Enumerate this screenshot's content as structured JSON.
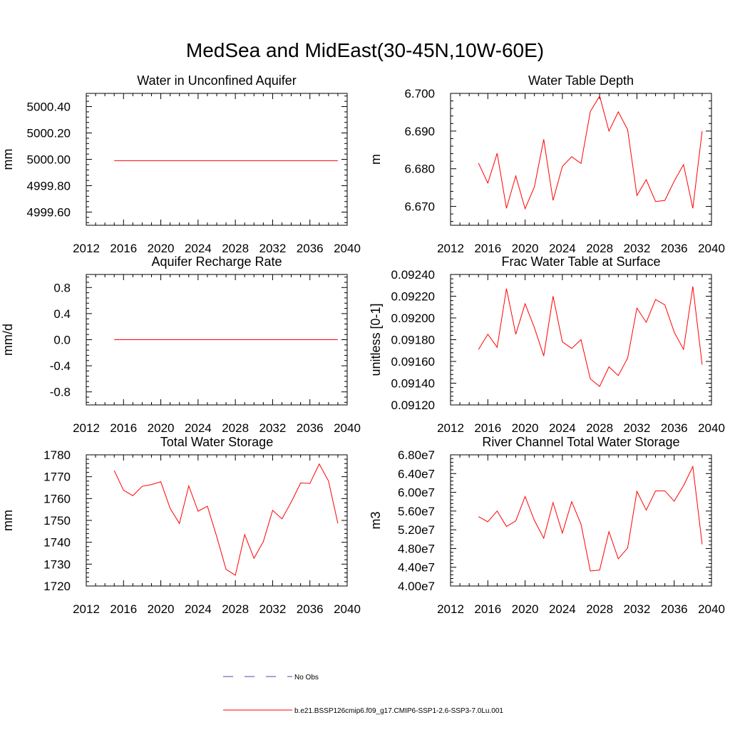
{
  "title": "MedSea and MidEast(30-45N,10W-60E)",
  "colors": {
    "model": "#ff0000",
    "obs": "#4a4aa8",
    "axis": "#000000"
  },
  "legend": {
    "obs_label": "No Obs",
    "model_label": "b.e21.BSSP126cmip6.f09_g17.CMIP6-SSP1-2.6-SSP3-7.0Lu.001"
  },
  "chart_data": [
    {
      "type": "line",
      "title": "Water in Unconfined Aquifer",
      "ylabel": "mm",
      "xlim": [
        2012,
        2040
      ],
      "ylim": [
        4999.5,
        5000.5
      ],
      "xticks": [
        2012,
        2016,
        2020,
        2024,
        2028,
        2032,
        2036,
        2040
      ],
      "xtick_labels": [
        "2012",
        "2016",
        "2020",
        "2024",
        "2028",
        "2032",
        "2036",
        "2040"
      ],
      "yticks": [
        4999.6,
        4999.8,
        5000.0,
        5000.2,
        5000.4
      ],
      "ytick_labels": [
        "4999.60",
        "4999.80",
        "5000.00",
        "5000.20",
        "5000.40"
      ],
      "x": [
        2015,
        2039
      ],
      "y": [
        4999.99,
        4999.99
      ]
    },
    {
      "type": "line",
      "title": "Water Table Depth",
      "ylabel": "m",
      "xlim": [
        2012,
        2040
      ],
      "ylim": [
        6.665,
        6.7
      ],
      "xticks": [
        2012,
        2016,
        2020,
        2024,
        2028,
        2032,
        2036,
        2040
      ],
      "xtick_labels": [
        "2012",
        "2016",
        "2020",
        "2024",
        "2028",
        "2032",
        "2036",
        "2040"
      ],
      "yticks": [
        6.67,
        6.68,
        6.69,
        6.7
      ],
      "ytick_labels": [
        "6.670",
        "6.680",
        "6.690",
        "6.700"
      ],
      "x": [
        2015,
        2016,
        2017,
        2018,
        2019,
        2020,
        2021,
        2022,
        2023,
        2024,
        2025,
        2026,
        2027,
        2028,
        2029,
        2030,
        2031,
        2032,
        2033,
        2034,
        2035,
        2036,
        2037,
        2038,
        2039
      ],
      "y": [
        6.6815,
        6.6762,
        6.6841,
        6.6695,
        6.6781,
        6.6694,
        6.6752,
        6.6878,
        6.6716,
        6.6806,
        6.6832,
        6.6814,
        6.6952,
        6.6993,
        6.69,
        6.6951,
        6.6904,
        6.6729,
        6.6771,
        6.6713,
        6.6716,
        6.6767,
        6.6811,
        6.6695,
        6.69
      ]
    },
    {
      "type": "line",
      "title": "Aquifer Recharge Rate",
      "ylabel": "mm/d",
      "xlim": [
        2012,
        2040
      ],
      "ylim": [
        -1.0,
        1.0
      ],
      "xticks": [
        2012,
        2016,
        2020,
        2024,
        2028,
        2032,
        2036,
        2040
      ],
      "xtick_labels": [
        "2012",
        "2016",
        "2020",
        "2024",
        "2028",
        "2032",
        "2036",
        "2040"
      ],
      "yticks": [
        -0.8,
        -0.4,
        0.0,
        0.4,
        0.8
      ],
      "ytick_labels": [
        "-0.8",
        "-0.4",
        "0.0",
        "0.4",
        "0.8"
      ],
      "x": [
        2015,
        2039
      ],
      "y": [
        0.0,
        0.0
      ]
    },
    {
      "type": "line",
      "title": "Frac Water Table at Surface",
      "ylabel": "unitless [0-1]",
      "xlim": [
        2012,
        2040
      ],
      "ylim": [
        0.0912,
        0.0924
      ],
      "xticks": [
        2012,
        2016,
        2020,
        2024,
        2028,
        2032,
        2036,
        2040
      ],
      "xtick_labels": [
        "2012",
        "2016",
        "2020",
        "2024",
        "2028",
        "2032",
        "2036",
        "2040"
      ],
      "yticks": [
        0.0912,
        0.0914,
        0.0916,
        0.0918,
        0.092,
        0.0922,
        0.0924
      ],
      "ytick_labels": [
        "0.09120",
        "0.09140",
        "0.09160",
        "0.09180",
        "0.09200",
        "0.09220",
        "0.09240"
      ],
      "x": [
        2015,
        2016,
        2017,
        2018,
        2019,
        2020,
        2021,
        2022,
        2023,
        2024,
        2025,
        2026,
        2027,
        2028,
        2029,
        2030,
        2031,
        2032,
        2033,
        2034,
        2035,
        2036,
        2037,
        2038,
        2039
      ],
      "y": [
        0.09171,
        0.09185,
        0.09173,
        0.09227,
        0.09185,
        0.09213,
        0.09191,
        0.09165,
        0.0922,
        0.09178,
        0.09172,
        0.0918,
        0.09144,
        0.09137,
        0.09155,
        0.09147,
        0.09163,
        0.09209,
        0.09196,
        0.09217,
        0.09212,
        0.09187,
        0.09171,
        0.09229,
        0.09157
      ]
    },
    {
      "type": "line",
      "title": "Total Water Storage",
      "ylabel": "mm",
      "xlim": [
        2012,
        2040
      ],
      "ylim": [
        1720,
        1780
      ],
      "xticks": [
        2012,
        2016,
        2020,
        2024,
        2028,
        2032,
        2036,
        2040
      ],
      "xtick_labels": [
        "2012",
        "2016",
        "2020",
        "2024",
        "2028",
        "2032",
        "2036",
        "2040"
      ],
      "yticks": [
        1720,
        1730,
        1740,
        1750,
        1760,
        1770,
        1780
      ],
      "ytick_labels": [
        "1720",
        "1730",
        "1740",
        "1750",
        "1760",
        "1770",
        "1780"
      ],
      "x": [
        2015,
        2016,
        2017,
        2018,
        2019,
        2020,
        2021,
        2022,
        2023,
        2024,
        2025,
        2026,
        2027,
        2028,
        2029,
        2030,
        2031,
        2032,
        2033,
        2034,
        2035,
        2036,
        2037,
        2038,
        2039
      ],
      "y": [
        1772.8,
        1763.8,
        1761.3,
        1765.6,
        1766.4,
        1767.7,
        1755.5,
        1748.6,
        1765.8,
        1754.2,
        1756.5,
        1742.6,
        1727.6,
        1724.9,
        1743.5,
        1732.7,
        1740.3,
        1754.6,
        1750.7,
        1758.4,
        1767.1,
        1766.9,
        1775.8,
        1768.0,
        1748.6
      ]
    },
    {
      "type": "line",
      "title": "River Channel Total Water Storage",
      "ylabel": "m3",
      "xlim": [
        2012,
        2040
      ],
      "ylim": [
        40000000,
        68000000
      ],
      "xticks": [
        2012,
        2016,
        2020,
        2024,
        2028,
        2032,
        2036,
        2040
      ],
      "xtick_labels": [
        "2012",
        "2016",
        "2020",
        "2024",
        "2028",
        "2032",
        "2036",
        "2040"
      ],
      "yticks": [
        40000000,
        44000000,
        48000000,
        52000000,
        56000000,
        60000000,
        64000000,
        68000000
      ],
      "ytick_labels": [
        "4.00e7",
        "4.40e7",
        "4.80e7",
        "5.20e7",
        "5.60e7",
        "6.00e7",
        "6.40e7",
        "6.80e7"
      ],
      "x": [
        2015,
        2016,
        2017,
        2018,
        2019,
        2020,
        2021,
        2022,
        2023,
        2024,
        2025,
        2026,
        2027,
        2028,
        2029,
        2030,
        2031,
        2032,
        2033,
        2034,
        2035,
        2036,
        2037,
        2038,
        2039
      ],
      "y": [
        54800000,
        53700000,
        56000000,
        52700000,
        53900000,
        59100000,
        54000000,
        50200000,
        57800000,
        51300000,
        58000000,
        53200000,
        43200000,
        43400000,
        51600000,
        45800000,
        48100000,
        60200000,
        56200000,
        60300000,
        60300000,
        58100000,
        61400000,
        65500000,
        48900000
      ]
    }
  ]
}
